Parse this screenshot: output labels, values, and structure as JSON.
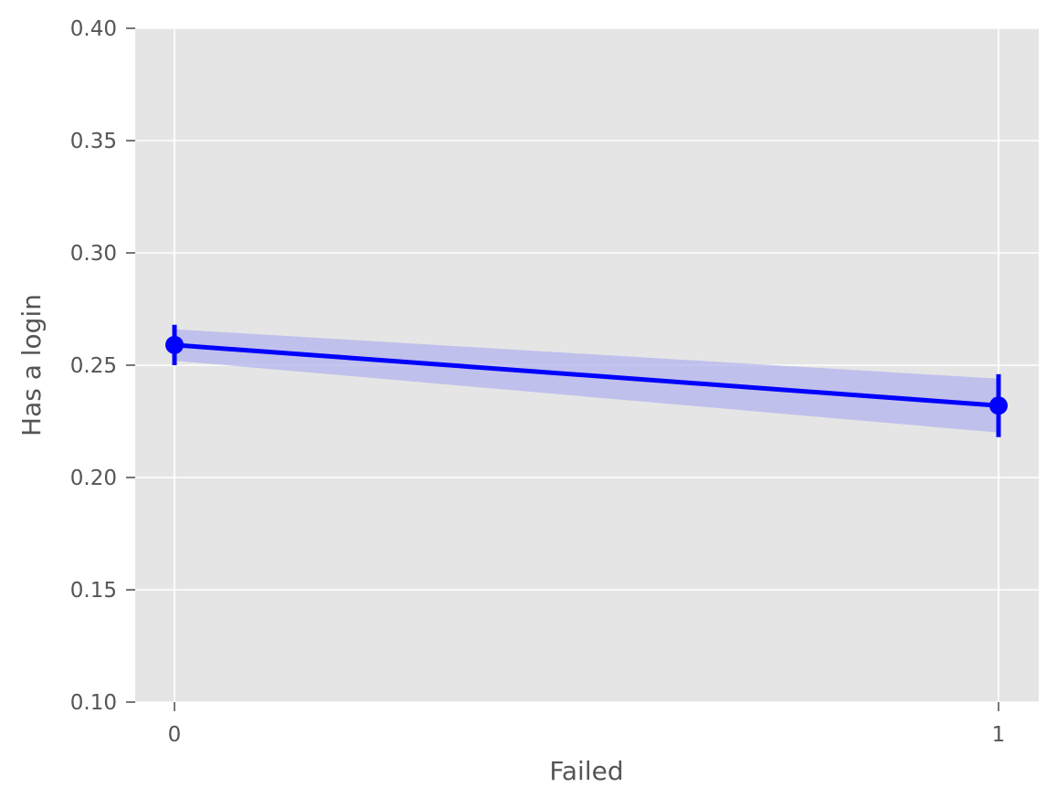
{
  "chart_data": {
    "type": "line",
    "title": "",
    "xlabel": "Failed",
    "ylabel": "Has a login",
    "categories": [
      "0",
      "1"
    ],
    "x": [
      0,
      1
    ],
    "y_ticks": [
      "0.10",
      "0.15",
      "0.20",
      "0.25",
      "0.30",
      "0.35",
      "0.40"
    ],
    "ylim": [
      0.1,
      0.4
    ],
    "grid": true,
    "series": [
      {
        "values": [
          0.259,
          0.232
        ],
        "error_bars": [
          [
            0.25,
            0.268
          ],
          [
            0.218,
            0.246
          ]
        ],
        "band": [
          [
            0.252,
            0.266
          ],
          [
            0.22,
            0.244
          ]
        ],
        "color": "#0000ff",
        "band_color": "#b0b0f0"
      }
    ],
    "axes_background": "#e5e5e5",
    "grid_color": "#ffffff"
  }
}
